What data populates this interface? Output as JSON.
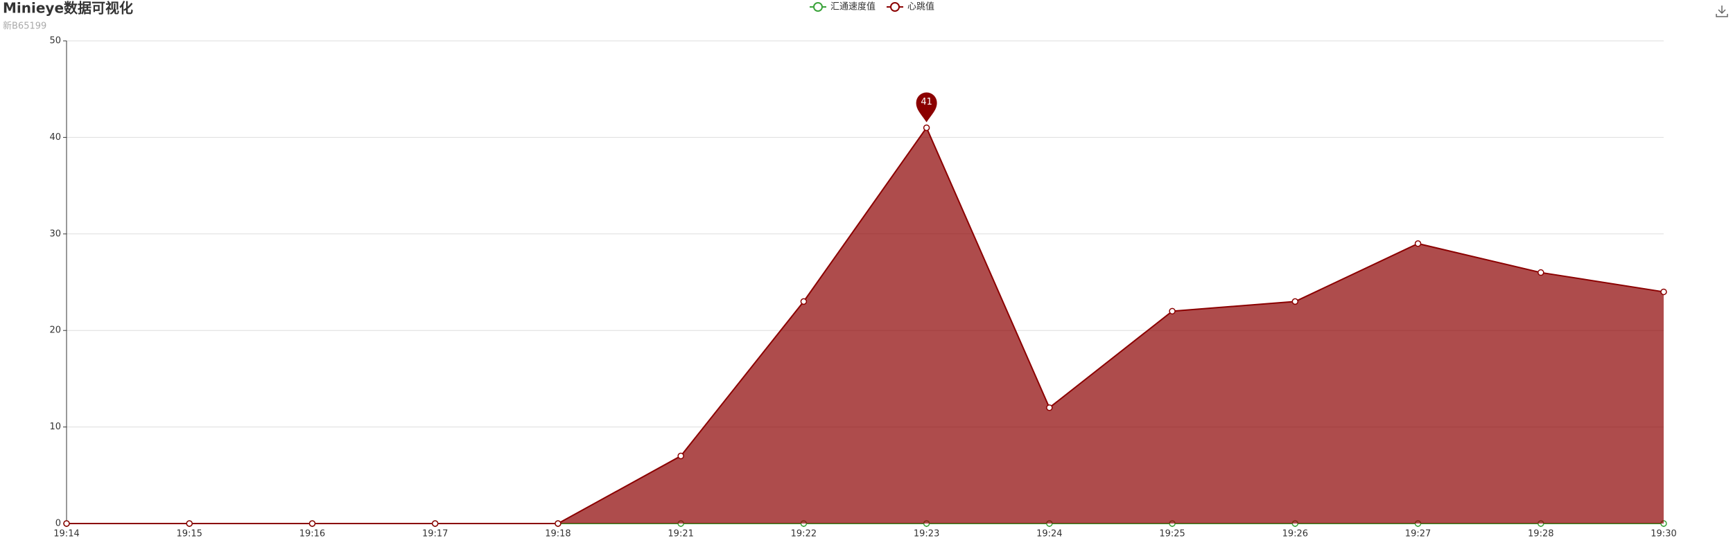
{
  "chart_data": {
    "type": "line",
    "title": "Minieye数据可视化",
    "subtitle": "新B65199",
    "categories": [
      "19:14",
      "19:15",
      "19:16",
      "19:17",
      "19:18",
      "19:21",
      "19:22",
      "19:23",
      "19:24",
      "19:25",
      "19:26",
      "19:27",
      "19:28",
      "19:30"
    ],
    "series": [
      {
        "name": "汇通速度值",
        "color": "#3aa33a",
        "values": [
          0,
          0,
          0,
          0,
          0,
          0,
          0,
          0,
          0,
          0,
          0,
          0,
          0,
          0
        ]
      },
      {
        "name": "心跳值",
        "color": "#8b0000",
        "values": [
          0,
          0,
          0,
          0,
          0,
          7,
          23,
          41,
          12,
          22,
          23,
          29,
          26,
          24
        ]
      }
    ],
    "ylim": [
      0,
      50
    ],
    "yticks": [
      0,
      10,
      20,
      30,
      40,
      50
    ],
    "grid": true,
    "legend": "top",
    "area": true
  }
}
